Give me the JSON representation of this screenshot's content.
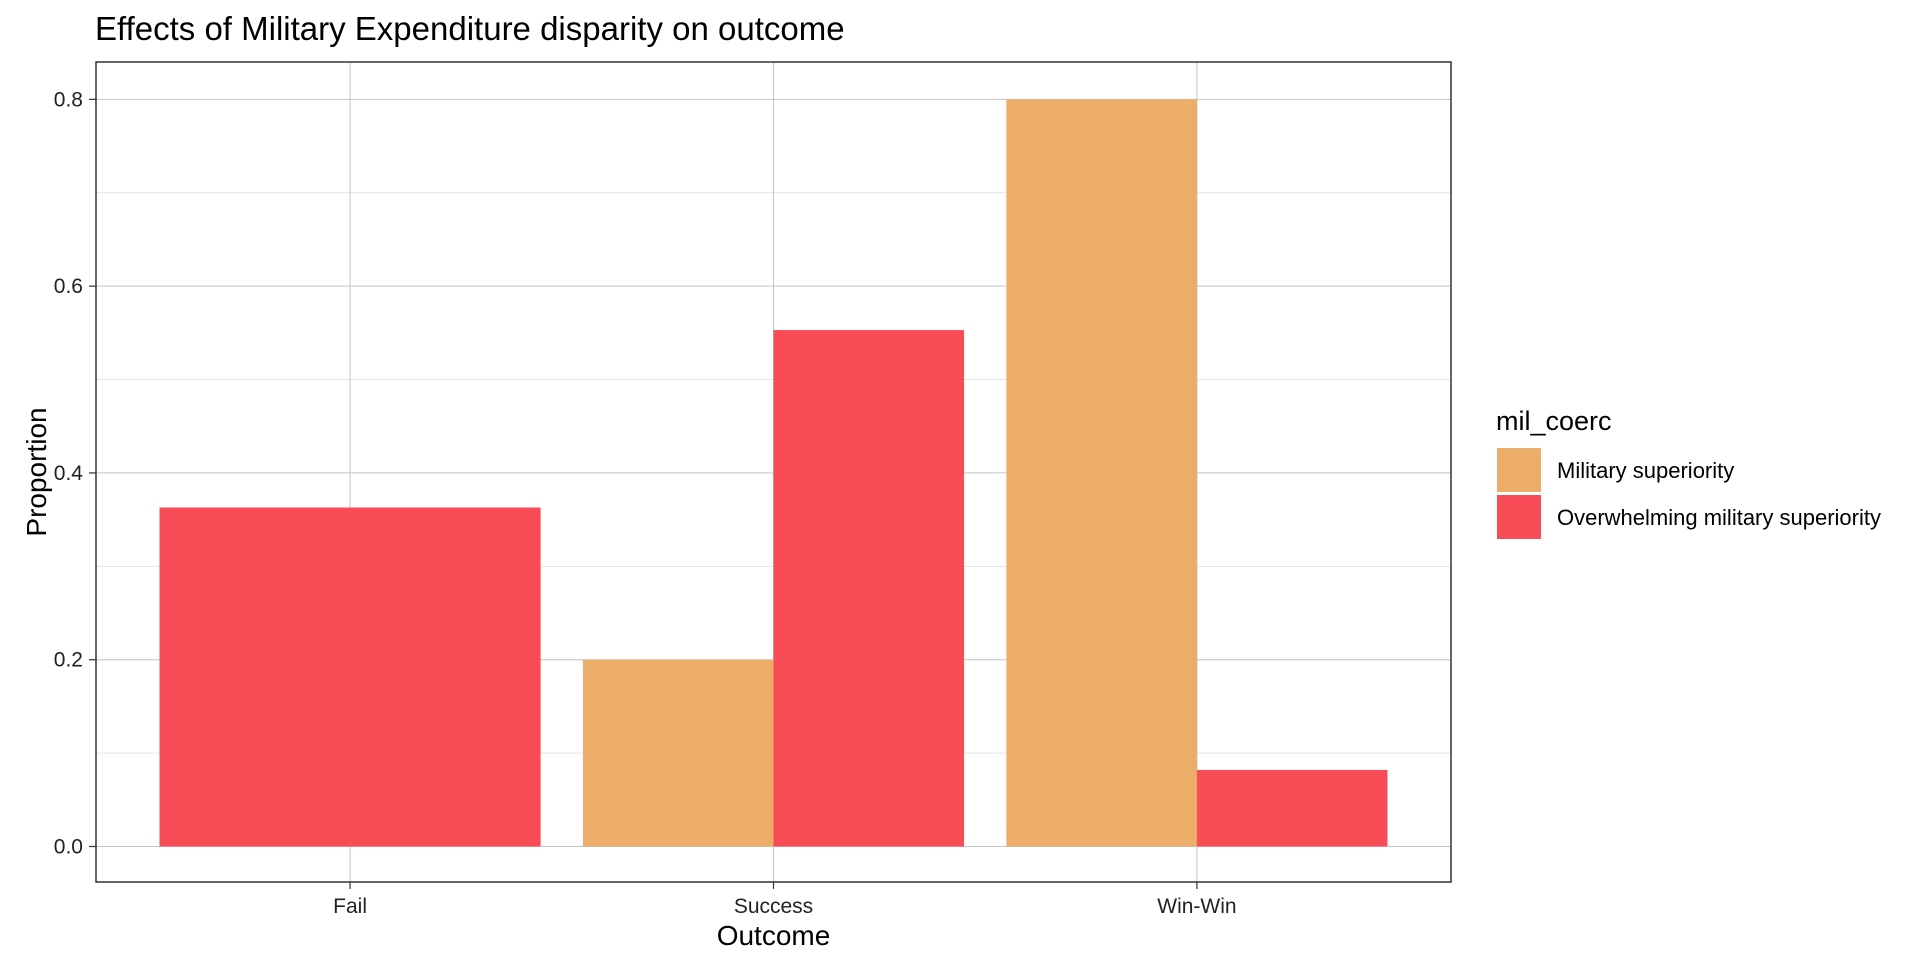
{
  "chart_data": {
    "type": "bar",
    "title": "Effects of Military Expenditure disparity on outcome",
    "xlabel": "Outcome",
    "ylabel": "Proportion",
    "categories": [
      "Fail",
      "Success",
      "Win-Win"
    ],
    "series": [
      {
        "name": "Military superiority",
        "color": "#ECAD68",
        "values": [
          null,
          0.2,
          0.8
        ]
      },
      {
        "name": "Overwhelming military superiority",
        "color": "#F84C57",
        "values": [
          0.363,
          0.553,
          0.082
        ]
      }
    ],
    "ylim": [
      -0.038,
      0.84
    ],
    "yticks": [
      0.0,
      0.2,
      0.4,
      0.6,
      0.8
    ],
    "ytick_labels": [
      "0.0",
      "0.2",
      "0.4",
      "0.6",
      "0.8"
    ],
    "grid": true,
    "legend": {
      "title": "mil_coerc",
      "placement": "right"
    }
  }
}
